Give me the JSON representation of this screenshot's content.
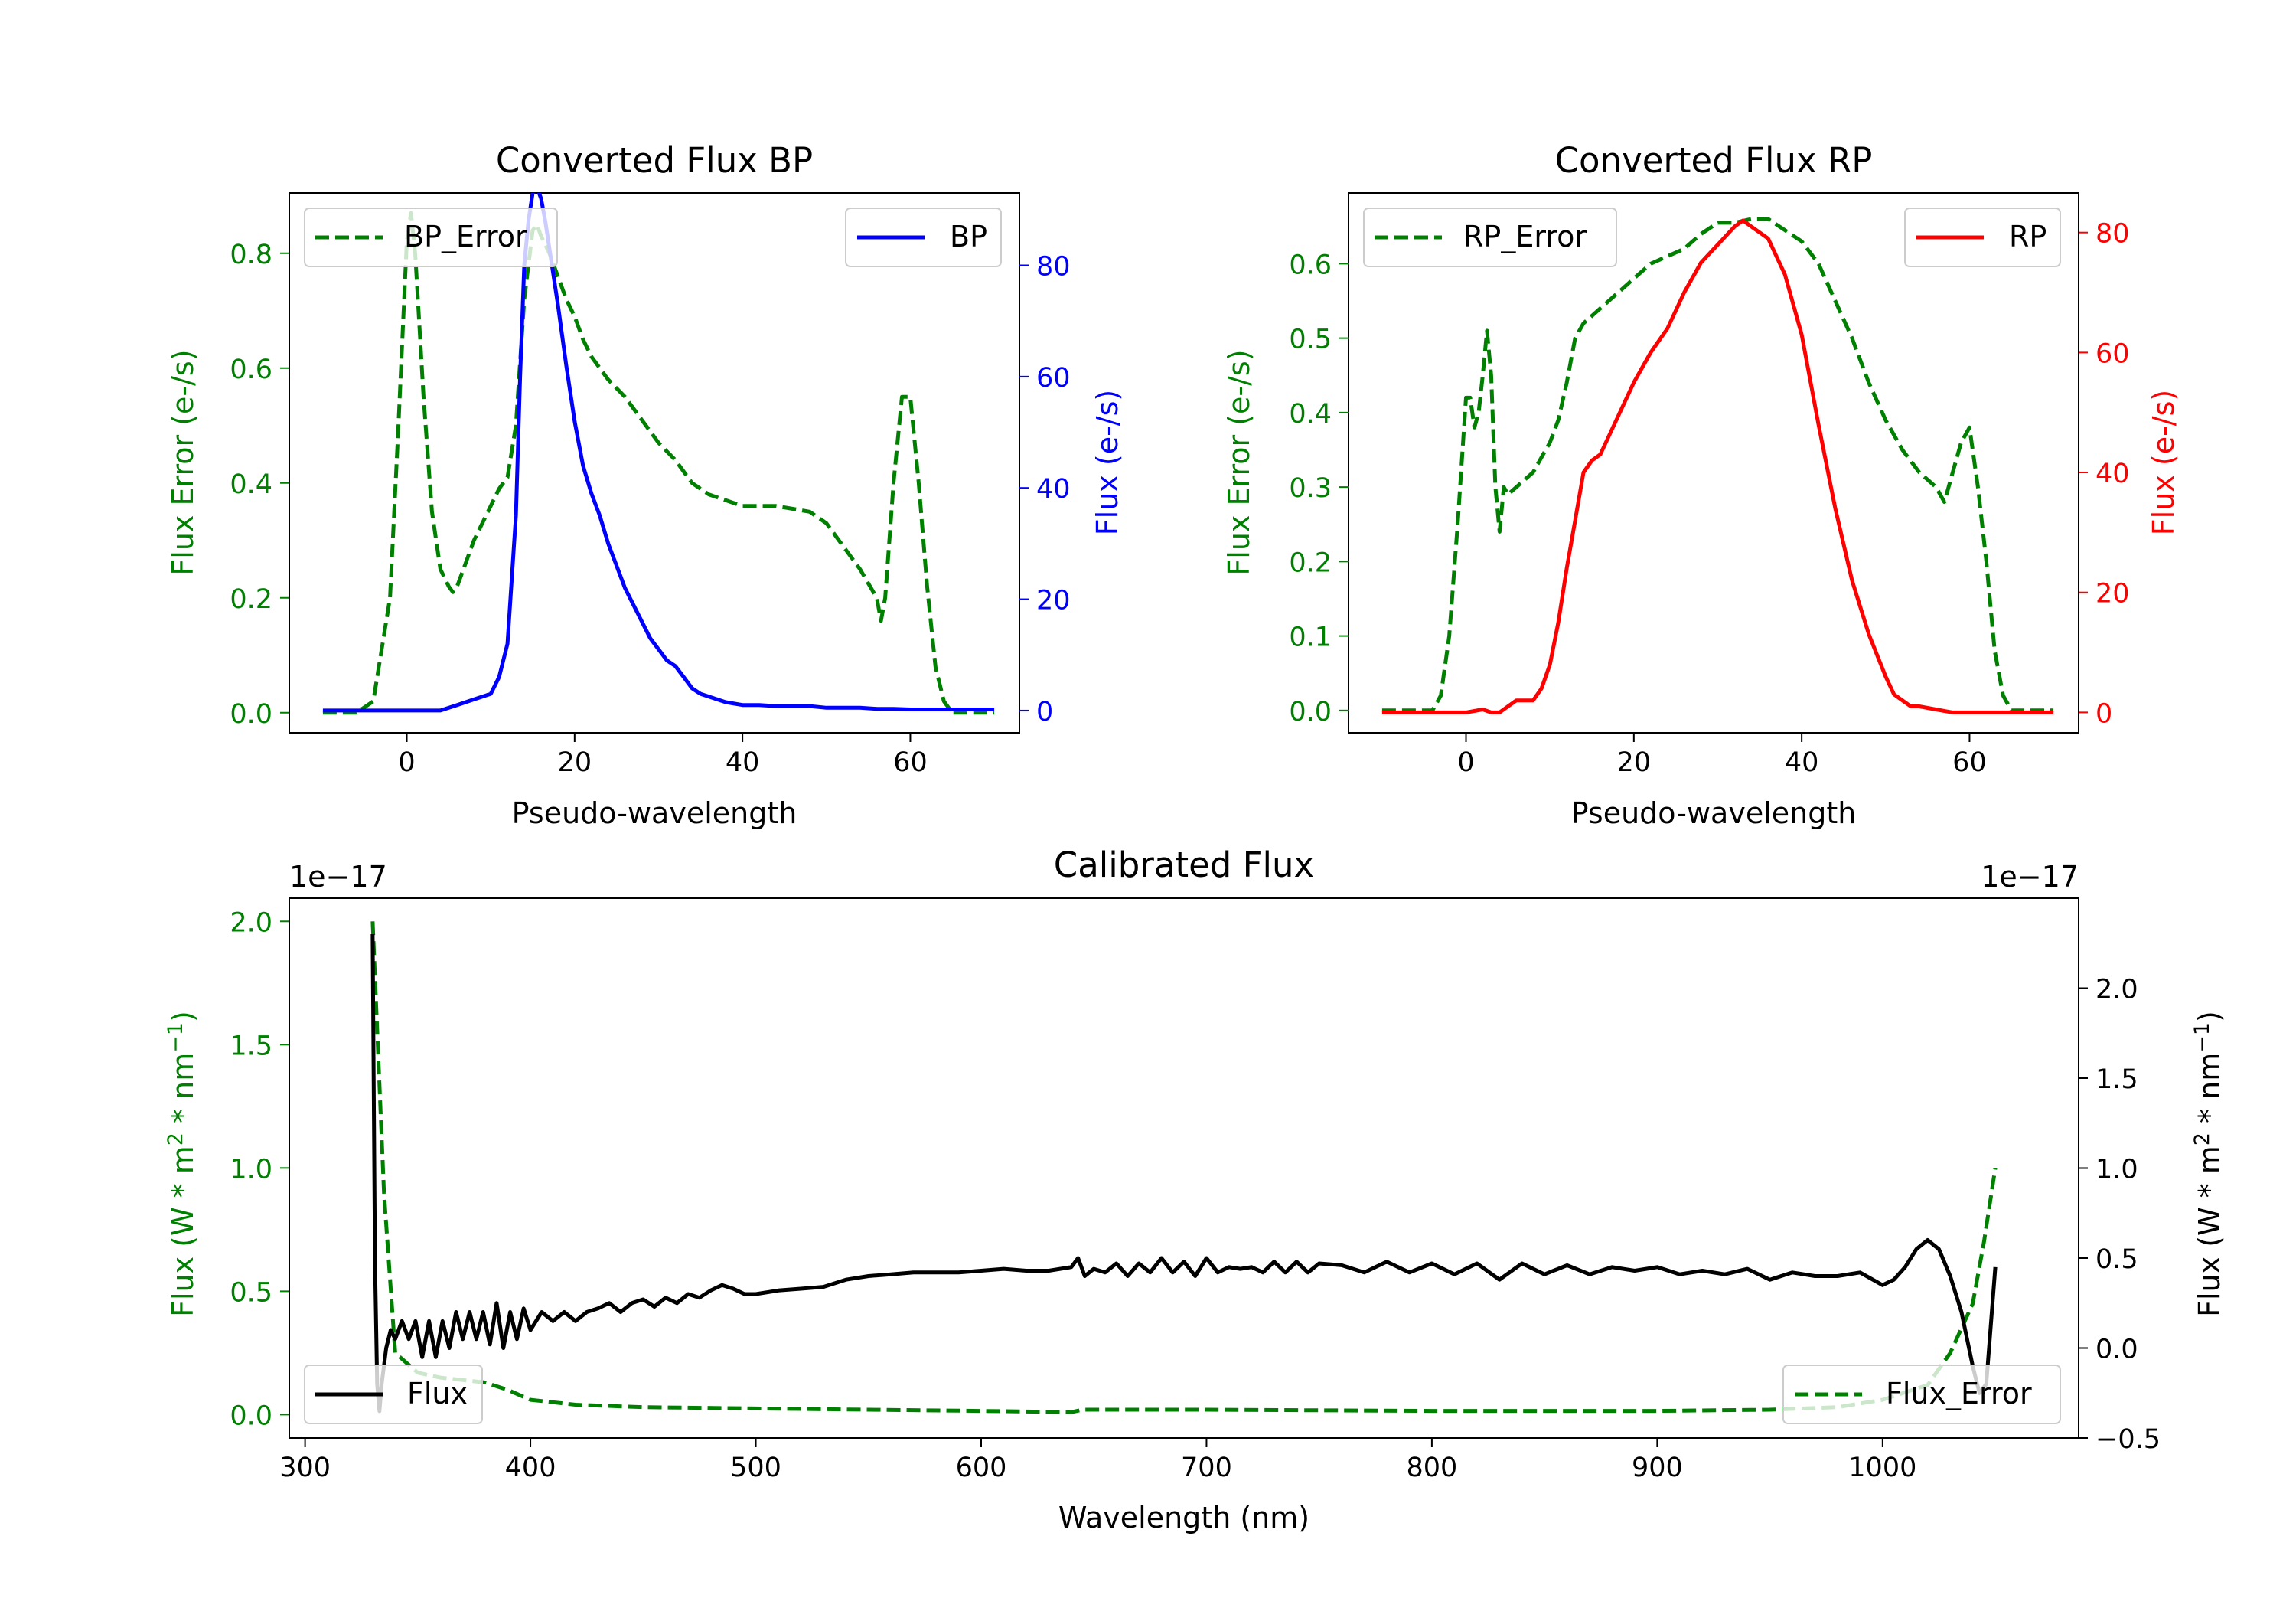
{
  "figure": {
    "background": "#ffffff"
  },
  "chart_data": [
    {
      "id": "bp",
      "type": "line",
      "title": "Converted Flux BP",
      "xlabel": "Pseudo-wavelength",
      "xlim": [
        -14,
        73
      ],
      "xticks": [
        0,
        20,
        40,
        60
      ],
      "grid": false,
      "left_axis": {
        "label": "Flux Error (e-/s)",
        "color": "#008000",
        "ylim": [
          -0.035,
          0.905
        ],
        "ticks": [
          0.0,
          0.2,
          0.4,
          0.6,
          0.8
        ],
        "tick_labels": [
          "0.0",
          "0.2",
          "0.4",
          "0.6",
          "0.8"
        ]
      },
      "right_axis": {
        "label": "Flux (e-/s)",
        "color": "#0000ff",
        "ylim": [
          -4,
          93
        ],
        "ticks": [
          0,
          20,
          40,
          60,
          80
        ],
        "tick_labels": [
          "0",
          "20",
          "40",
          "60",
          "80"
        ]
      },
      "series": [
        {
          "name": "BP_Error",
          "axis": "left",
          "style": "dashed",
          "color": "#008000",
          "legend": "top-left",
          "x": [
            -10,
            -6,
            -4,
            -2,
            -1,
            0,
            0.5,
            1,
            2,
            3,
            4,
            5,
            5.5,
            6,
            7,
            8,
            9,
            10,
            11,
            12,
            13,
            14,
            15,
            15.5,
            16,
            17,
            18,
            19,
            20,
            21,
            22,
            24,
            26,
            28,
            30,
            32,
            34,
            36,
            38,
            40,
            42,
            44,
            46,
            48,
            50,
            52,
            54,
            56,
            56.5,
            57,
            58,
            59,
            60,
            61,
            62,
            63,
            64,
            65,
            66,
            67,
            68,
            70
          ],
          "y": [
            0.0,
            0.0,
            0.02,
            0.2,
            0.5,
            0.82,
            0.87,
            0.8,
            0.55,
            0.35,
            0.25,
            0.22,
            0.21,
            0.22,
            0.26,
            0.3,
            0.33,
            0.36,
            0.39,
            0.41,
            0.5,
            0.72,
            0.84,
            0.85,
            0.83,
            0.8,
            0.76,
            0.72,
            0.69,
            0.65,
            0.62,
            0.58,
            0.55,
            0.51,
            0.47,
            0.44,
            0.4,
            0.38,
            0.37,
            0.36,
            0.36,
            0.36,
            0.355,
            0.35,
            0.33,
            0.29,
            0.25,
            0.2,
            0.16,
            0.2,
            0.4,
            0.55,
            0.55,
            0.4,
            0.22,
            0.08,
            0.02,
            0.0,
            0.0,
            0.0,
            0.0,
            0.0
          ]
        },
        {
          "name": "BP",
          "axis": "right",
          "style": "solid",
          "color": "#0000ff",
          "legend": "top-right",
          "x": [
            -10,
            -6,
            -3,
            0,
            2,
            4,
            6,
            8,
            10,
            11,
            12,
            13,
            13.5,
            14,
            14.5,
            15,
            15.5,
            16,
            16.5,
            17,
            18,
            19,
            20,
            21,
            22,
            23,
            24,
            25,
            26,
            27,
            28,
            29,
            30,
            31,
            32,
            33,
            34,
            35,
            36,
            37,
            38,
            40,
            42,
            44,
            46,
            48,
            50,
            52,
            54,
            56,
            58,
            60,
            62,
            65,
            70
          ],
          "y": [
            0,
            0,
            0,
            0,
            0,
            0,
            1,
            2,
            3,
            6,
            12,
            35,
            60,
            80,
            88,
            93,
            94,
            92,
            88,
            83,
            73,
            62,
            52,
            44,
            39,
            35,
            30,
            26,
            22,
            19,
            16,
            13,
            11,
            9,
            8,
            6,
            4,
            3,
            2.5,
            2,
            1.5,
            1,
            1,
            0.8,
            0.8,
            0.8,
            0.5,
            0.5,
            0.5,
            0.3,
            0.3,
            0.2,
            0.2,
            0.2,
            0.2
          ]
        }
      ]
    },
    {
      "id": "rp",
      "type": "line",
      "title": "Converted Flux RP",
      "xlabel": "Pseudo-wavelength",
      "xlim": [
        -14,
        73
      ],
      "xticks": [
        0,
        20,
        40,
        60
      ],
      "grid": false,
      "left_axis": {
        "label": "Flux Error (e-/s)",
        "color": "#008000",
        "ylim": [
          -0.03,
          0.695
        ],
        "ticks": [
          0.0,
          0.1,
          0.2,
          0.3,
          0.4,
          0.5,
          0.6
        ],
        "tick_labels": [
          "0.0",
          "0.1",
          "0.2",
          "0.3",
          "0.4",
          "0.5",
          "0.6"
        ]
      },
      "right_axis": {
        "label": "Flux (e-/s)",
        "color": "#ff0000",
        "ylim": [
          -3.4,
          86.6
        ],
        "ticks": [
          0,
          20,
          40,
          60,
          80
        ],
        "tick_labels": [
          "0",
          "20",
          "40",
          "60",
          "80"
        ]
      },
      "series": [
        {
          "name": "RP_Error",
          "axis": "left",
          "style": "dashed",
          "color": "#008000",
          "legend": "top-left",
          "x": [
            -10,
            -4,
            -3,
            -2,
            -1,
            0,
            0.5,
            1,
            1.5,
            2,
            2.5,
            3,
            3.5,
            4,
            4.5,
            5,
            6,
            7,
            8,
            9,
            10,
            11,
            12,
            13,
            14,
            16,
            18,
            20,
            22,
            24,
            26,
            28,
            30,
            32,
            34,
            36,
            38,
            40,
            42,
            44,
            46,
            48,
            50,
            52,
            54,
            55,
            56,
            57,
            58,
            59,
            60,
            61,
            62,
            63,
            64,
            65,
            66,
            70
          ],
          "y": [
            0.0,
            0.0,
            0.02,
            0.1,
            0.25,
            0.42,
            0.42,
            0.38,
            0.4,
            0.45,
            0.51,
            0.45,
            0.3,
            0.24,
            0.3,
            0.29,
            0.3,
            0.31,
            0.32,
            0.34,
            0.36,
            0.39,
            0.44,
            0.5,
            0.52,
            0.54,
            0.56,
            0.58,
            0.6,
            0.61,
            0.62,
            0.64,
            0.655,
            0.655,
            0.66,
            0.66,
            0.645,
            0.63,
            0.6,
            0.55,
            0.5,
            0.44,
            0.39,
            0.35,
            0.32,
            0.31,
            0.3,
            0.28,
            0.32,
            0.36,
            0.38,
            0.3,
            0.2,
            0.08,
            0.02,
            0.0,
            0.0,
            0.0
          ]
        },
        {
          "name": "RP",
          "axis": "right",
          "style": "solid",
          "color": "#ff0000",
          "legend": "top-right",
          "x": [
            -10,
            -4,
            0,
            2,
            3,
            4,
            5,
            6,
            7,
            8,
            9,
            10,
            11,
            12,
            13,
            14,
            15,
            16,
            18,
            20,
            22,
            24,
            26,
            28,
            30,
            32,
            33,
            34,
            36,
            38,
            40,
            42,
            44,
            46,
            48,
            50,
            51,
            52,
            53,
            54,
            56,
            58,
            60,
            62,
            64,
            66,
            70
          ],
          "y": [
            0,
            0,
            0,
            0.5,
            0,
            0,
            1,
            2,
            2,
            2,
            4,
            8,
            15,
            24,
            32,
            40,
            42,
            43,
            49,
            55,
            60,
            64,
            70,
            75,
            78,
            81,
            82,
            81,
            79,
            73,
            63,
            48,
            34,
            22,
            13,
            6,
            3,
            2,
            1,
            1,
            0.5,
            0,
            0,
            0,
            0,
            0,
            0
          ]
        }
      ]
    },
    {
      "id": "calibrated",
      "type": "line",
      "title": "Calibrated Flux",
      "xlabel": "Wavelength (nm)",
      "xlim": [
        293,
        1087
      ],
      "xticks": [
        300,
        400,
        500,
        600,
        700,
        800,
        900,
        1000
      ],
      "grid": false,
      "left_axis": {
        "label": "Flux (W * m² * nm⁻¹)",
        "label_pre": "Flux (W * m",
        "label_mid": " * nm",
        "label_post": ")",
        "sup1": "2",
        "sup2": "−1",
        "color": "#008000",
        "ylim": [
          -0.095,
          2.094
        ],
        "ticks": [
          0.0,
          0.5,
          1.0,
          1.5,
          2.0
        ],
        "tick_labels": [
          "0.0",
          "0.5",
          "1.0",
          "1.5",
          "2.0"
        ],
        "offset_text": "1e−17"
      },
      "right_axis": {
        "label": "Flux (W * m² * nm⁻¹)",
        "label_pre": "Flux (W * m",
        "label_mid": " * nm",
        "label_post": ")",
        "sup1": "2",
        "sup2": "−1",
        "color": "#000000",
        "ylim": [
          -0.5,
          2.5
        ],
        "ticks": [
          -0.5,
          0.0,
          0.5,
          1.0,
          1.5,
          2.0
        ],
        "tick_labels": [
          "−0.5",
          "0.0",
          "0.5",
          "1.0",
          "1.5",
          "2.0"
        ],
        "offset_text": "1e−17"
      },
      "series": [
        {
          "name": "Flux_Error",
          "axis": "left",
          "style": "dashed",
          "color": "#008000",
          "legend": "bottom-right",
          "x": [
            330,
            335,
            340,
            350,
            360,
            370,
            380,
            390,
            400,
            420,
            450,
            500,
            550,
            600,
            640,
            645,
            700,
            800,
            900,
            950,
            980,
            1000,
            1020,
            1030,
            1040,
            1045,
            1050
          ],
          "y": [
            2.0,
            0.9,
            0.25,
            0.17,
            0.15,
            0.14,
            0.13,
            0.1,
            0.06,
            0.04,
            0.03,
            0.025,
            0.02,
            0.015,
            0.01,
            0.02,
            0.02,
            0.015,
            0.015,
            0.02,
            0.03,
            0.06,
            0.12,
            0.25,
            0.45,
            0.7,
            1.0
          ]
        },
        {
          "name": "Flux",
          "axis": "right",
          "style": "solid",
          "color": "#000000",
          "legend": "bottom-left",
          "x": [
            330,
            331,
            332,
            333,
            334,
            336,
            338,
            340,
            343,
            346,
            349,
            352,
            355,
            358,
            361,
            364,
            367,
            370,
            373,
            376,
            379,
            382,
            385,
            388,
            391,
            394,
            397,
            400,
            405,
            410,
            415,
            420,
            425,
            430,
            435,
            440,
            445,
            450,
            455,
            460,
            465,
            470,
            475,
            480,
            485,
            490,
            495,
            500,
            510,
            520,
            530,
            540,
            550,
            560,
            570,
            580,
            590,
            600,
            610,
            620,
            630,
            640,
            643,
            646,
            650,
            655,
            660,
            665,
            670,
            675,
            680,
            685,
            690,
            695,
            700,
            705,
            710,
            715,
            720,
            725,
            730,
            735,
            740,
            745,
            750,
            760,
            770,
            780,
            790,
            800,
            810,
            820,
            830,
            840,
            850,
            860,
            870,
            880,
            890,
            900,
            910,
            920,
            930,
            940,
            950,
            960,
            970,
            980,
            990,
            1000,
            1005,
            1010,
            1015,
            1020,
            1025,
            1030,
            1035,
            1040,
            1043,
            1046,
            1050
          ],
          "y": [
            2.3,
            0.5,
            -0.2,
            -0.35,
            -0.2,
            0.0,
            0.1,
            0.05,
            0.15,
            0.05,
            0.15,
            -0.05,
            0.15,
            -0.05,
            0.15,
            0.0,
            0.2,
            0.05,
            0.2,
            0.05,
            0.2,
            0.02,
            0.25,
            0.0,
            0.2,
            0.05,
            0.22,
            0.1,
            0.2,
            0.15,
            0.2,
            0.15,
            0.2,
            0.22,
            0.25,
            0.2,
            0.25,
            0.27,
            0.23,
            0.28,
            0.25,
            0.3,
            0.28,
            0.32,
            0.35,
            0.33,
            0.3,
            0.3,
            0.32,
            0.33,
            0.34,
            0.38,
            0.4,
            0.41,
            0.42,
            0.42,
            0.42,
            0.43,
            0.44,
            0.43,
            0.43,
            0.45,
            0.5,
            0.4,
            0.44,
            0.42,
            0.47,
            0.4,
            0.47,
            0.42,
            0.5,
            0.42,
            0.48,
            0.4,
            0.5,
            0.42,
            0.45,
            0.44,
            0.45,
            0.42,
            0.48,
            0.42,
            0.48,
            0.42,
            0.47,
            0.46,
            0.42,
            0.48,
            0.42,
            0.47,
            0.41,
            0.47,
            0.38,
            0.47,
            0.41,
            0.46,
            0.41,
            0.45,
            0.43,
            0.45,
            0.41,
            0.43,
            0.41,
            0.44,
            0.38,
            0.42,
            0.4,
            0.4,
            0.42,
            0.35,
            0.38,
            0.45,
            0.55,
            0.6,
            0.55,
            0.4,
            0.2,
            -0.1,
            -0.25,
            -0.2,
            0.45
          ]
        }
      ]
    }
  ]
}
